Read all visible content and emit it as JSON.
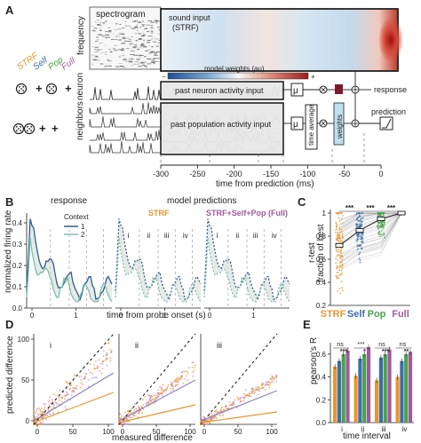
{
  "panel_a": {
    "letter": "A",
    "spectrogram_label": "spectrogram",
    "frequency_label": "frequency",
    "strf_box_label": "sound input\n(STRF)",
    "colorbar_title": "model weights (au)",
    "colorbar_minus": "−",
    "colorbar_plus": "+",
    "neuron_label": "neuron",
    "neighbors_label": "neighbors",
    "neuron_box_label": "past neuron activity input",
    "population_box_label": "past population activity input",
    "mu1": "μ",
    "mu2": "μ",
    "time_average_label": "time average",
    "weights_label": "weights",
    "response_label": "response",
    "prediction_label": "prediction",
    "legend_words": [
      "STRF",
      "Self",
      "Pop",
      "Full"
    ],
    "legend_colors": [
      "#e8962f",
      "#3d6fa8",
      "#4aa24c",
      "#a05a9b"
    ],
    "plus_signs": [
      "+",
      "+",
      "+",
      "+"
    ],
    "xaxis_ticks": [
      "-300",
      "-250",
      "-200",
      "-150",
      "-100",
      "-50",
      "0"
    ],
    "xaxis_label": "time from prediction (ms)"
  },
  "panel_b": {
    "letter": "B",
    "title_response": "response",
    "title_predictions": "model predictions",
    "ylabel": "normalized firing rate",
    "xlabel": "time from probe onset (s)",
    "y_ticks": [
      "0.0",
      "0.1",
      "0.2",
      "0.3",
      "0.4"
    ],
    "x_ticks": [
      "0",
      "1",
      "0",
      "1",
      "0",
      "1"
    ],
    "legend_title": "Context",
    "legend_items": [
      "1",
      "2"
    ],
    "strf_title": "STRF",
    "full_title": "STRF+Self+Pop (Full)",
    "interval_labels": [
      "i",
      "ii",
      "iii",
      "iv"
    ],
    "colors": {
      "context1": "#2f5d8a",
      "context2": "#7bbfb4",
      "strf": "#e8962f",
      "full": "#a05a9b"
    }
  },
  "panel_c": {
    "letter": "C",
    "ylabel_top": "r-test",
    "ylabel_bottom": "fraction of best",
    "y_ticks": [
      "0.2",
      "0.4",
      "0.6",
      "0.8",
      "1"
    ],
    "stars": [
      "***",
      "***",
      "***"
    ],
    "categories": [
      "STRF",
      "Self",
      "Pop",
      "Full"
    ],
    "means": [
      0.72,
      0.85,
      0.95,
      1.0
    ],
    "colors": [
      "#e8962f",
      "#3d6fa8",
      "#4aa24c",
      "#a05a9b"
    ]
  },
  "panel_d": {
    "letter": "D",
    "ylabel": "predicted difference",
    "xlabel": "measured difference",
    "subplots": [
      "i",
      "ii",
      "iii"
    ],
    "x_ticks": [
      "0",
      "50",
      "100"
    ],
    "y_ticks": [
      "0",
      "50",
      "100"
    ]
  },
  "panel_e": {
    "letter": "E",
    "ylabel": "pearson's R",
    "xlabel": "time interval",
    "y_ticks": [
      "0.0",
      "0.2",
      "0.4",
      "0.6"
    ],
    "intervals": [
      "i",
      "ii",
      "iii",
      "iv"
    ],
    "colors": [
      "#e8962f",
      "#3d6fa8",
      "#4aa24c",
      "#a05a9b"
    ],
    "sig_labels": [
      [
        "ns",
        "***"
      ],
      [
        "***",
        "*"
      ],
      [
        "ns",
        "***"
      ],
      [
        "ns",
        "**"
      ]
    ]
  },
  "chart_data": [
    {
      "type": "bar",
      "title": "",
      "xlabel": "time interval",
      "ylabel": "pearson's R",
      "categories": [
        "i",
        "ii",
        "iii",
        "iv"
      ],
      "ylim": [
        0,
        0.7
      ],
      "series": [
        {
          "name": "STRF",
          "values": [
            0.49,
            0.41,
            0.37,
            0.4
          ]
        },
        {
          "name": "Self",
          "values": [
            0.54,
            0.56,
            0.57,
            0.54
          ]
        },
        {
          "name": "Pop",
          "values": [
            0.6,
            0.6,
            0.6,
            0.6
          ]
        },
        {
          "name": "Full",
          "values": [
            0.63,
            0.66,
            0.64,
            0.62
          ]
        }
      ]
    },
    {
      "type": "scatter",
      "title": "",
      "ylabel": "r-test fraction of best",
      "categories": [
        "STRF",
        "Self",
        "Pop",
        "Full"
      ],
      "ylim": [
        0.2,
        1.0
      ],
      "series": [
        {
          "name": "",
          "values": [
            0.72,
            0.85,
            0.95,
            1.0
          ]
        }
      ]
    }
  ]
}
